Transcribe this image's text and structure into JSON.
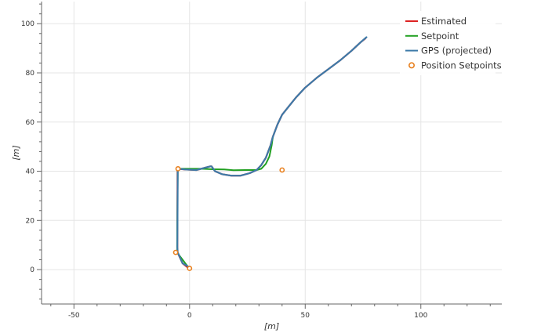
{
  "chart_data": {
    "type": "line",
    "title": "",
    "xlabel": "[m]",
    "ylabel": "[m]",
    "xlim": [
      -64,
      135
    ],
    "ylim": [
      -14,
      109
    ],
    "x_ticks": [
      -50,
      0,
      50,
      100
    ],
    "y_ticks": [
      0,
      20,
      40,
      60,
      80,
      100
    ],
    "grid": true,
    "legend_position": "top-right",
    "legend": [
      "Estimated",
      "Setpoint",
      "GPS (projected)",
      "Position Setpoints"
    ],
    "colors": {
      "estimated": "#dd2222",
      "setpoint": "#22a022",
      "gps": "#3d7aa8",
      "position_setpoints": "#e8801f",
      "grid": "#e5e5e5",
      "axis": "#666666"
    },
    "series": [
      {
        "name": "Estimated",
        "points": [
          [
            0,
            0.5
          ],
          [
            -1,
            1
          ],
          [
            -3,
            2.5
          ],
          [
            -5.2,
            7
          ],
          [
            -5.3,
            9
          ],
          [
            -5.2,
            40
          ],
          [
            -5,
            41
          ],
          [
            -2,
            40.7
          ],
          [
            3,
            40.5
          ],
          [
            7,
            41.5
          ],
          [
            9,
            42
          ],
          [
            9.5,
            42
          ],
          [
            11,
            40
          ],
          [
            14,
            38.8
          ],
          [
            18,
            38.2
          ],
          [
            22,
            38.2
          ],
          [
            26,
            39.2
          ],
          [
            29,
            40.5
          ],
          [
            31,
            42.5
          ],
          [
            33,
            45.5
          ],
          [
            35,
            50.5
          ],
          [
            36,
            54
          ],
          [
            38,
            59
          ],
          [
            40,
            63
          ],
          [
            43,
            66.5
          ],
          [
            46,
            70
          ],
          [
            50,
            74
          ],
          [
            55,
            78
          ],
          [
            60,
            81.5
          ],
          [
            65,
            85
          ],
          [
            70,
            89
          ],
          [
            74,
            92.5
          ],
          [
            76,
            94
          ]
        ]
      },
      {
        "name": "Setpoint",
        "points": [
          [
            0,
            0.5
          ],
          [
            -1,
            1.5
          ],
          [
            -3,
            4
          ],
          [
            -5.2,
            6.7
          ],
          [
            -5.4,
            9
          ],
          [
            -5.1,
            40
          ],
          [
            -4.7,
            41
          ],
          [
            0,
            41
          ],
          [
            5,
            41
          ],
          [
            10,
            40.8
          ],
          [
            15,
            40.7
          ],
          [
            19,
            40.4
          ],
          [
            24,
            40.5
          ],
          [
            29,
            40.5
          ],
          [
            31,
            41
          ],
          [
            33,
            43
          ],
          [
            34.5,
            46
          ],
          [
            35.5,
            50.5
          ],
          [
            36,
            54
          ]
        ]
      },
      {
        "name": "GPS (projected)",
        "points": [
          [
            0.5,
            0.5
          ],
          [
            -1,
            1.5
          ],
          [
            -3,
            2.5
          ],
          [
            -5.1,
            7
          ],
          [
            -5.3,
            9
          ],
          [
            -5.1,
            40
          ],
          [
            -4.6,
            41
          ],
          [
            -2,
            40.7
          ],
          [
            3,
            40.5
          ],
          [
            7,
            41.5
          ],
          [
            9,
            42
          ],
          [
            9.5,
            42
          ],
          [
            11,
            40
          ],
          [
            14,
            38.8
          ],
          [
            18,
            38.2
          ],
          [
            22,
            38.2
          ],
          [
            26,
            39.2
          ],
          [
            29,
            40.5
          ],
          [
            31,
            42.5
          ],
          [
            33,
            45.5
          ],
          [
            35,
            50.5
          ],
          [
            36,
            54
          ],
          [
            38,
            59
          ],
          [
            40,
            63
          ],
          [
            43,
            66.5
          ],
          [
            46,
            70
          ],
          [
            50,
            74
          ],
          [
            55,
            78
          ],
          [
            60,
            81.5
          ],
          [
            65,
            85
          ],
          [
            70,
            89
          ],
          [
            74,
            92.5
          ],
          [
            76.5,
            94.5
          ]
        ]
      },
      {
        "name": "Position Setpoints",
        "points": [
          [
            -5,
            41
          ],
          [
            -6,
            7
          ],
          [
            0,
            0.5
          ],
          [
            40,
            40.5
          ]
        ]
      }
    ]
  }
}
